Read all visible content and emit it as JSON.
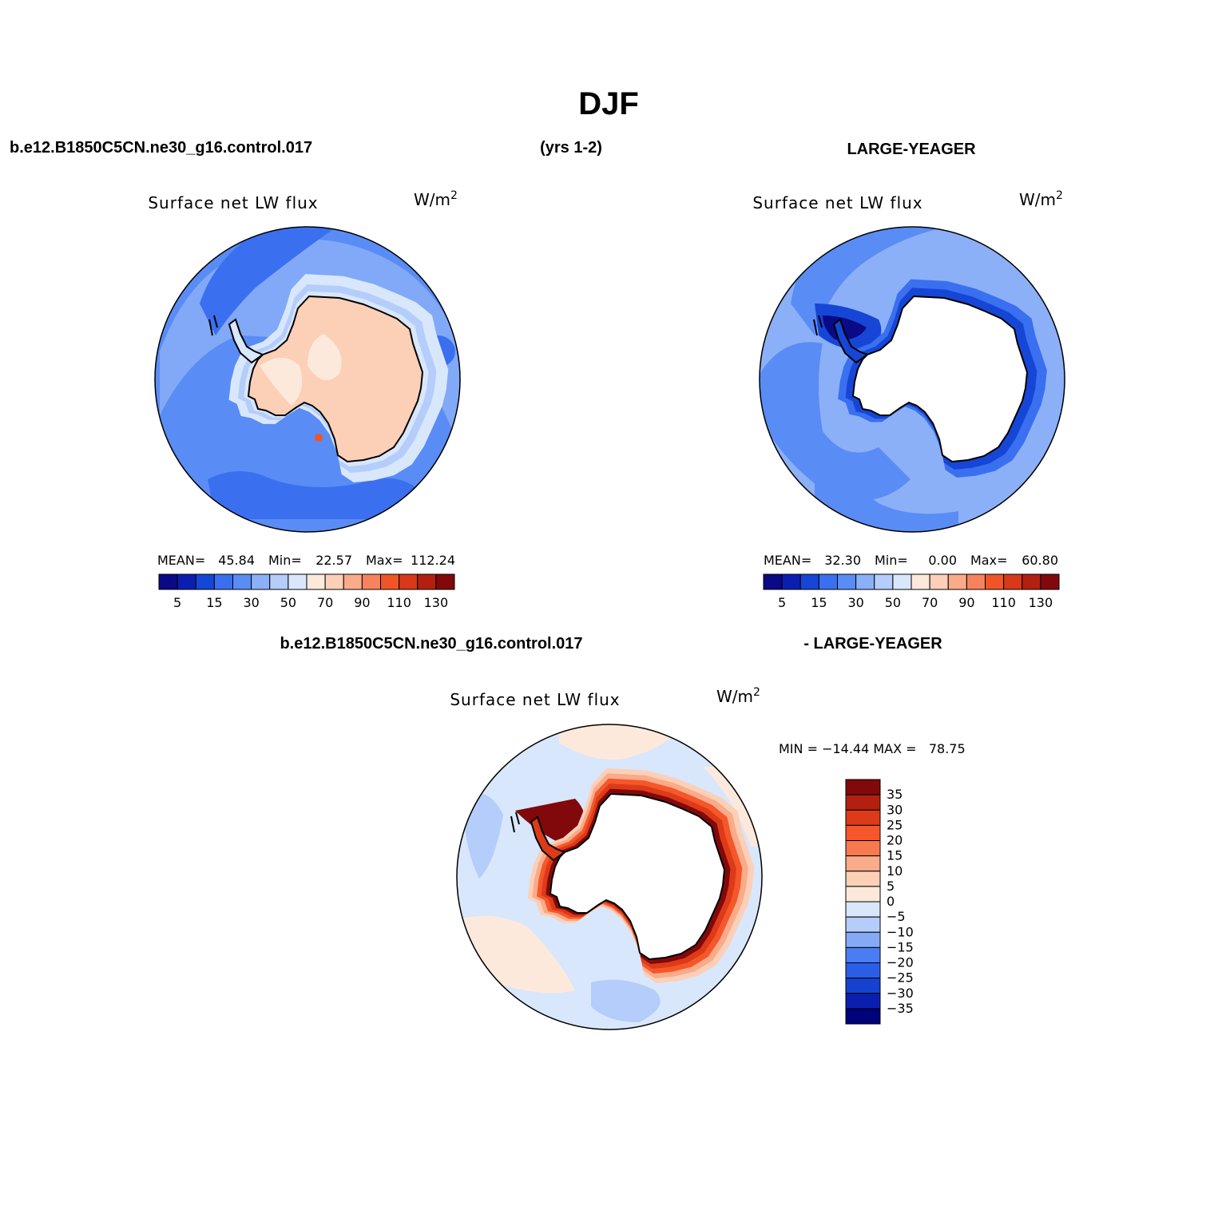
{
  "page": {
    "title": "DJF",
    "case_name": "b.e12.B1850C5CN.ne30_g16.control.017",
    "years": "(yrs 1-2)",
    "obs_name": "LARGE-YEAGER",
    "diff_left": "b.e12.B1850C5CN.ne30_g16.control.017",
    "diff_right": "- LARGE-YEAGER"
  },
  "colors": {
    "abs_scale": [
      "#0a0a86",
      "#0a1fb0",
      "#1546d6",
      "#3a6ff0",
      "#5a8cf5",
      "#8bb0f7",
      "#b4cdfa",
      "#d8e7fc",
      "#fde9dc",
      "#fccfb7",
      "#f9ab8a",
      "#f6835d",
      "#ef5527",
      "#d9381a",
      "#b3200f",
      "#82090b"
    ],
    "diff_scale": [
      "#00027a",
      "#0a1fb0",
      "#1543d0",
      "#2b5ee6",
      "#4a7df3",
      "#85aaf5",
      "#b4cdfa",
      "#d8e7fc",
      "#fde9dc",
      "#fccfb7",
      "#f9ab8a",
      "#f77a4f",
      "#f5572a",
      "#dd3a18",
      "#b3200f",
      "#82090b"
    ],
    "land": "#ffffff",
    "coast": "#000000"
  },
  "chart_data": [
    {
      "type": "heatmap",
      "projection": "south-polar-stereographic",
      "title": "Surface net LW flux",
      "units": "W/m",
      "units_exp": "2",
      "stats_labels": {
        "mean": "MEAN=",
        "min": "Min=",
        "max": "Max="
      },
      "stats": {
        "mean": "45.84",
        "min": "22.57",
        "max": "112.24"
      },
      "levels": [
        5,
        10,
        15,
        20,
        30,
        40,
        50,
        60,
        70,
        80,
        90,
        100,
        110,
        120,
        130
      ],
      "tick_labels": [
        "5",
        "15",
        "30",
        "50",
        "70",
        "90",
        "110",
        "130"
      ],
      "field": {
        "ocean_far": "30-40 W/m2",
        "ocean_near_ice": "50-60 W/m2",
        "antarctica": "70-80 W/m2",
        "peak": "112.24 W/m2"
      }
    },
    {
      "type": "heatmap",
      "projection": "south-polar-stereographic",
      "title": "Surface net LW flux",
      "units": "W/m",
      "units_exp": "2",
      "stats_labels": {
        "mean": "MEAN=",
        "min": "Min=",
        "max": "Max="
      },
      "stats": {
        "mean": "32.30",
        "min": "0.00",
        "max": "60.80"
      },
      "levels": [
        5,
        10,
        15,
        20,
        30,
        40,
        50,
        60,
        70,
        80,
        90,
        100,
        110,
        120,
        130
      ],
      "tick_labels": [
        "5",
        "15",
        "30",
        "50",
        "70",
        "90",
        "110",
        "130"
      ],
      "field": {
        "ocean_far": "30-40 W/m2",
        "coastal_minimum": "5-20 W/m2",
        "antarctica": "missing"
      }
    },
    {
      "type": "heatmap",
      "projection": "south-polar-stereographic",
      "title": "Surface net LW flux",
      "units": "W/m",
      "units_exp": "2",
      "minmax_text": "MIN = −14.44 MAX =   78.75",
      "levels": [
        -35,
        -30,
        -25,
        -20,
        -15,
        -10,
        -5,
        0,
        5,
        10,
        15,
        20,
        25,
        30,
        35
      ],
      "tick_labels": [
        "35",
        "30",
        "25",
        "20",
        "15",
        "10",
        "5",
        "0",
        "−5",
        "−10",
        "−15",
        "−20",
        "−25",
        "−30",
        "−35"
      ],
      "field": {
        "ocean_far": "-5 to 5 W/m2",
        "coastal_ring": "20 to 35+ W/m2",
        "antarctica": "missing"
      }
    }
  ]
}
